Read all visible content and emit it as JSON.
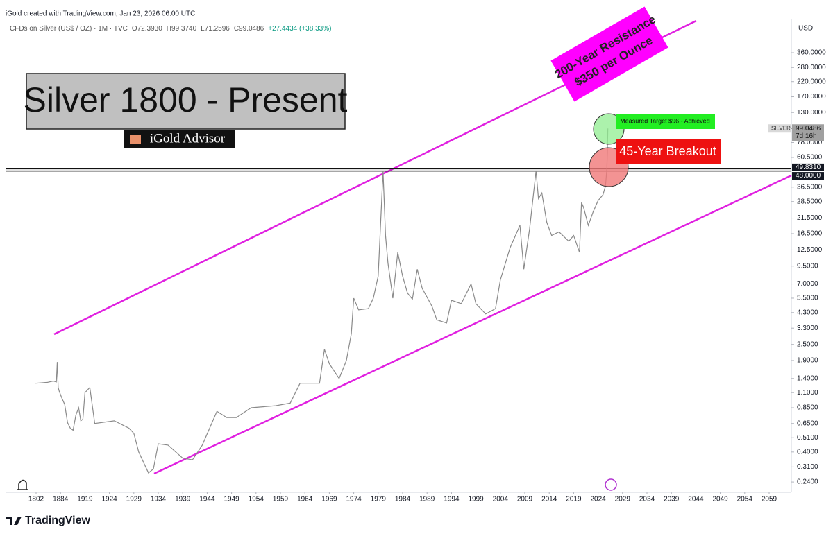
{
  "header": {
    "credit": "iGold created with TradingView.com, Jan 23, 2026 06:00 UTC",
    "symbol": "CFDs on Silver (US$ / OZ) · 1M · TVC",
    "ohlc": [
      "O72.3930",
      "H99.3740",
      "L71.2596",
      "C99.0486",
      "+27.4434 (+38.33%)"
    ]
  },
  "footer": {
    "brand": "TradingView"
  },
  "chart_data": {
    "type": "line",
    "title": "Silver 1800 - Present",
    "badge": "iGold Advisor",
    "currency": "USD",
    "annotations": {
      "resistance": [
        "200-Year Resistance",
        "$350 per Ounce"
      ],
      "target": "Measured Target $96 - Achieved",
      "breakout": "45-Year Breakout"
    },
    "log_scale": true,
    "grid": false,
    "series": [
      {
        "name": "SILVER",
        "color": "#8a8a8a",
        "x": [
          1800,
          1820,
          1840,
          1860,
          1870,
          1873,
          1876,
          1880,
          1886,
          1890,
          1894,
          1898,
          1902,
          1906,
          1910,
          1913,
          1916,
          1919,
          1920,
          1921,
          1925,
          1928,
          1929,
          1930,
          1932,
          1933,
          1934,
          1936,
          1939,
          1941,
          1943,
          1946,
          1948,
          1950,
          1953,
          1958,
          1961,
          1963,
          1967,
          1968,
          1969,
          1971,
          1972.5,
          1973.5,
          1974,
          1975,
          1977,
          1978,
          1979,
          1980,
          1980.5,
          1981,
          1982,
          1983,
          1984,
          1985,
          1986,
          1987,
          1988,
          1990,
          1991,
          1993,
          1994,
          1996,
          1998,
          1999,
          2001,
          2003,
          2004,
          2006,
          2008,
          2008.8,
          2010,
          2011.3,
          2011.8,
          2012.5,
          2013.5,
          2014.5,
          2016,
          2018,
          2019,
          2020.2,
          2020.6,
          2021,
          2022,
          2023,
          2024,
          2025,
          2025.5,
          2025.8,
          2026
        ],
        "values": [
          1.29,
          1.3,
          1.31,
          1.34,
          1.32,
          1.85,
          1.2,
          1.12,
          1.0,
          0.9,
          0.66,
          0.6,
          0.58,
          0.75,
          0.85,
          0.68,
          0.7,
          1.1,
          1.2,
          0.65,
          0.68,
          0.6,
          0.55,
          0.4,
          0.28,
          0.3,
          0.46,
          0.45,
          0.36,
          0.35,
          0.45,
          0.8,
          0.72,
          0.72,
          0.85,
          0.88,
          0.92,
          1.29,
          1.29,
          2.3,
          1.8,
          1.4,
          1.9,
          3,
          5.5,
          4.5,
          4.6,
          5.5,
          8,
          48,
          16,
          10,
          5.5,
          12,
          8,
          6,
          5.4,
          9,
          6.5,
          4.8,
          3.8,
          3.6,
          5.3,
          5,
          7,
          5,
          4.2,
          4.6,
          7.5,
          13,
          19,
          9,
          18,
          48,
          30,
          33,
          20,
          16,
          17,
          14.5,
          16,
          12,
          28,
          26,
          19,
          24,
          29,
          32,
          37,
          50,
          99.0486
        ]
      }
    ],
    "last_price": {
      "name": "SILVER",
      "value": 99.0486,
      "label": "99.0486",
      "countdown": "7d 16h"
    },
    "hlines": [
      {
        "value": 49.831,
        "label": "49.8310"
      },
      {
        "value": 48,
        "label": "48.0000"
      }
    ],
    "xlim": [
      1800,
      2062
    ],
    "xticks": [
      1802,
      1884,
      1919,
      1924,
      1929,
      1934,
      1939,
      1944,
      1949,
      1954,
      1959,
      1964,
      1969,
      1974,
      1979,
      1984,
      1989,
      1994,
      1999,
      2004,
      2009,
      2014,
      2019,
      2024,
      2029,
      2034,
      2039,
      2044,
      2049,
      2054,
      2059
    ],
    "ylim": [
      0.206,
      620
    ],
    "yticks": [
      {
        "value": 360,
        "label": "360.0000"
      },
      {
        "value": 280,
        "label": "280.0000"
      },
      {
        "value": 220,
        "label": "220.0000"
      },
      {
        "value": 170,
        "label": "170.0000"
      },
      {
        "value": 130,
        "label": "130.0000"
      },
      {
        "value": 78,
        "label": "78.0000"
      },
      {
        "value": 60.5,
        "label": "60.5000"
      },
      {
        "value": 36.5,
        "label": "36.5000"
      },
      {
        "value": 28.5,
        "label": "28.5000"
      },
      {
        "value": 21.5,
        "label": "21.5000"
      },
      {
        "value": 16.5,
        "label": "16.5000"
      },
      {
        "value": 12.5,
        "label": "12.5000"
      },
      {
        "value": 9.5,
        "label": "9.5000"
      },
      {
        "value": 7,
        "label": "7.0000"
      },
      {
        "value": 5.5,
        "label": "5.5000"
      },
      {
        "value": 4.3,
        "label": "4.3000"
      },
      {
        "value": 3.3,
        "label": "3.3000"
      },
      {
        "value": 2.5,
        "label": "2.5000"
      },
      {
        "value": 1.9,
        "label": "1.9000"
      },
      {
        "value": 1.4,
        "label": "1.4000"
      },
      {
        "value": 1.1,
        "label": "1.1000"
      },
      {
        "value": 0.85,
        "label": "0.8500"
      },
      {
        "value": 0.65,
        "label": "0.6500"
      },
      {
        "value": 0.51,
        "label": "0.5100"
      },
      {
        "value": 0.4,
        "label": "0.4000"
      },
      {
        "value": 0.31,
        "label": "0.3100"
      },
      {
        "value": 0.24,
        "label": "0.2400"
      }
    ]
  }
}
